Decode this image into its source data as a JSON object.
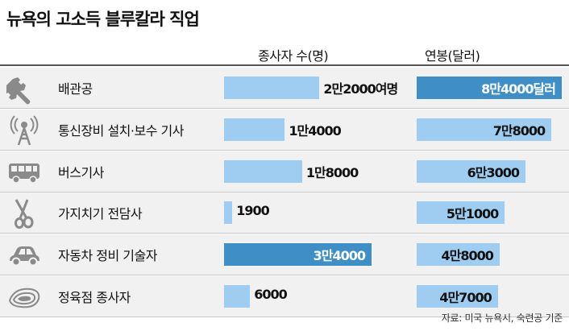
{
  "title": "뉴욕의 고소득 블루칼라 직업",
  "columns": {
    "workers": "종사자 수(명)",
    "salary": "연봉(달러)"
  },
  "source": "자료: 미국 뉴욕시, 숙련공 기준",
  "colors": {
    "bar_light": "#9fcdf1",
    "bar_dark": "#3f8fc6",
    "row_bg": "#f1f1f1",
    "icon": "#8a8a8a"
  },
  "rows": [
    {
      "job": "배관공",
      "icon": "wrench-icon",
      "workers_label": "2만2000여명",
      "salary_label": "8만4000달러"
    },
    {
      "job": "통신장비 설치·보수 기사",
      "icon": "antenna-tower-icon",
      "workers_label": "1만4000",
      "salary_label": "7만8000"
    },
    {
      "job": "버스기사",
      "icon": "bus-icon",
      "workers_label": "1만8000",
      "salary_label": "6만3000"
    },
    {
      "job": "가지치기 전담사",
      "icon": "scissors-icon",
      "workers_label": "1900",
      "salary_label": "5만1000"
    },
    {
      "job": "자동차 정비 기술자",
      "icon": "car-icon",
      "workers_label": "3만4000",
      "salary_label": "4만8000"
    },
    {
      "job": "정육점 종사자",
      "icon": "meat-icon",
      "workers_label": "6000",
      "salary_label": "4만7000"
    }
  ],
  "chart_data": [
    {
      "type": "bar",
      "title": "종사자 수(명)",
      "categories": [
        "배관공",
        "통신장비 설치·보수 기사",
        "버스기사",
        "가지치기 전담사",
        "자동차 정비 기술자",
        "정육점 종사자"
      ],
      "values": [
        22000,
        14000,
        18000,
        1900,
        34000,
        6000
      ],
      "highlight": "자동차 정비 기술자"
    },
    {
      "type": "bar",
      "title": "연봉(달러)",
      "categories": [
        "배관공",
        "통신장비 설치·보수 기사",
        "버스기사",
        "가지치기 전담사",
        "자동차 정비 기술자",
        "정육점 종사자"
      ],
      "values": [
        84000,
        78000,
        63000,
        51000,
        48000,
        47000
      ],
      "highlight": "배관공"
    }
  ]
}
